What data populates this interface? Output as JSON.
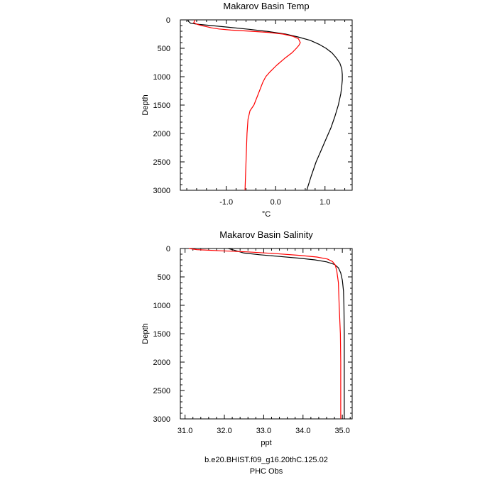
{
  "legend": {
    "model_label": "b.e20.BHIST.f09_g16.20thC.125.02",
    "obs_label": "PHC Obs",
    "model_color": "#000000",
    "obs_color": "#ff0000"
  },
  "chart_data": [
    {
      "type": "line",
      "title": "Makarov Basin Temp",
      "xlabel": "°C",
      "ylabel": "Depth",
      "xlim": [
        -1.93,
        1.55
      ],
      "ylim": [
        3000,
        0
      ],
      "y_inverted": true,
      "xticks": [
        -1.0,
        0.0,
        1.0
      ],
      "xtick_labels": [
        "-1.0",
        "0.0",
        "1.0"
      ],
      "yticks": [
        0,
        500,
        1000,
        1500,
        2000,
        2500,
        3000
      ],
      "ytick_labels": [
        "0",
        "500",
        "1000",
        "1500",
        "2000",
        "2500",
        "3000"
      ],
      "series": [
        {
          "name": "b.e20.BHIST.f09_g16.20thC.125.02",
          "color": "#000000",
          "x": [
            -1.78,
            -1.76,
            -1.72,
            -1.55,
            -1.3,
            -0.95,
            -0.55,
            -0.15,
            0.2,
            0.45,
            0.7,
            0.88,
            1.02,
            1.14,
            1.23,
            1.3,
            1.34,
            1.35,
            1.35,
            1.34,
            1.32,
            1.27,
            1.2,
            1.12,
            1.02,
            0.92,
            0.82,
            0.72,
            0.63
          ],
          "y": [
            0,
            30,
            60,
            80,
            100,
            130,
            165,
            205,
            250,
            300,
            360,
            430,
            500,
            580,
            670,
            760,
            860,
            960,
            1060,
            1160,
            1300,
            1500,
            1700,
            1900,
            2100,
            2300,
            2500,
            2750,
            3000
          ]
        },
        {
          "name": "PHC Obs",
          "color": "#ff0000",
          "x": [
            -1.63,
            -1.66,
            -1.58,
            -1.5,
            -1.4,
            -1.3,
            -1.15,
            -0.9,
            -0.5,
            -0.15,
            0.15,
            0.35,
            0.46,
            0.5,
            0.47,
            0.42,
            0.33,
            0.18,
            0.02,
            -0.12,
            -0.2,
            -0.26,
            -0.35,
            -0.44,
            -0.52,
            -0.56,
            -0.58,
            -0.59,
            -0.6,
            -0.61,
            -0.62
          ],
          "y": [
            0,
            50,
            80,
            100,
            120,
            140,
            160,
            180,
            200,
            220,
            250,
            290,
            330,
            400,
            450,
            500,
            580,
            680,
            800,
            920,
            1000,
            1100,
            1300,
            1500,
            1600,
            1750,
            2000,
            2250,
            2500,
            2750,
            3000
          ]
        }
      ]
    },
    {
      "type": "line",
      "title": "Makarov Basin Salinity",
      "xlabel": "ppt",
      "ylabel": "Depth",
      "xlim": [
        30.88,
        35.25
      ],
      "ylim": [
        3000,
        0
      ],
      "y_inverted": true,
      "xticks": [
        31.0,
        32.0,
        33.0,
        34.0,
        35.0
      ],
      "xtick_labels": [
        "31.0",
        "32.0",
        "33.0",
        "34.0",
        "35.0"
      ],
      "yticks": [
        0,
        500,
        1000,
        1500,
        2000,
        2500,
        3000
      ],
      "ytick_labels": [
        "0",
        "500",
        "1000",
        "1500",
        "2000",
        "2500",
        "3000"
      ],
      "series": [
        {
          "name": "b.e20.BHIST.f09_g16.20thC.125.02",
          "color": "#000000",
          "x": [
            32.1,
            32.3,
            32.5,
            32.9,
            33.4,
            33.9,
            34.3,
            34.6,
            34.8,
            34.9,
            34.96,
            35.0,
            35.03,
            35.04,
            35.05,
            35.05,
            35.05
          ],
          "y": [
            0,
            40,
            80,
            110,
            140,
            170,
            200,
            235,
            280,
            340,
            430,
            560,
            750,
            1000,
            1500,
            2000,
            3000
          ]
        },
        {
          "name": "PHC Obs",
          "color": "#ff0000",
          "x": [
            31.1,
            31.3,
            31.9,
            32.6,
            33.3,
            33.9,
            34.35,
            34.62,
            34.75,
            34.82,
            34.86,
            34.9,
            34.92,
            34.95,
            34.96,
            34.96
          ],
          "y": [
            0,
            20,
            40,
            60,
            90,
            120,
            150,
            185,
            230,
            290,
            400,
            600,
            1000,
            1500,
            2000,
            3000
          ]
        }
      ]
    }
  ]
}
